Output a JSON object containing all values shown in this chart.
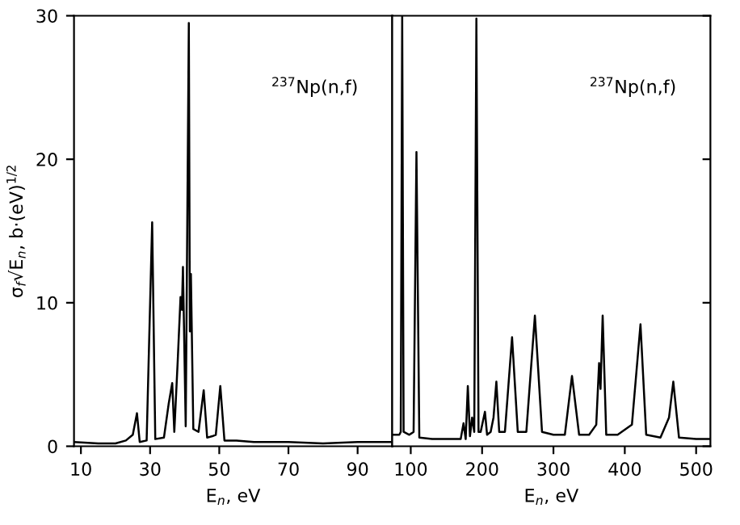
{
  "chart_data": [
    {
      "type": "line",
      "xlabel": "E$_{n}$, eV",
      "ylabel": "σ$_{f}$√E$_{n}$, b·(eV)$^{1/2}$",
      "annotations": [
        "$^{237}$Np(n,f)"
      ],
      "xlim": [
        8,
        100
      ],
      "ylim": [
        0,
        30
      ],
      "xticks": [
        10,
        30,
        50,
        70,
        90
      ],
      "yticks": [
        0,
        10,
        20,
        30
      ],
      "grid": false,
      "legend": false,
      "marker": "none",
      "line_style": "solid",
      "series": [
        {
          "color": "#000000",
          "x": [
            8,
            15,
            20,
            23,
            25,
            26.2,
            27,
            29,
            30.6,
            31.5,
            34,
            35.4,
            36.4,
            37,
            38,
            38.8,
            39.2,
            39.5,
            40.3,
            41.2,
            41.5,
            41.8,
            42.5,
            44,
            45.5,
            46.5,
            48,
            49,
            50.3,
            51.5,
            55,
            60,
            70,
            80,
            90,
            100
          ],
          "values": [
            0.3,
            0.2,
            0.2,
            0.4,
            0.8,
            2.3,
            0.3,
            0.4,
            15.6,
            0.5,
            0.6,
            3,
            4.4,
            1,
            6,
            10.4,
            9.5,
            12.5,
            1.4,
            29.5,
            8,
            12,
            1.2,
            1,
            3.9,
            0.6,
            0.7,
            0.8,
            4.2,
            0.4,
            0.4,
            0.3,
            0.3,
            0.2,
            0.3,
            0.3
          ]
        }
      ]
    },
    {
      "type": "line",
      "xlabel": "E$_{n}$, eV",
      "annotations": [
        "$^{237}$Np(n,f)"
      ],
      "xlim": [
        74,
        520
      ],
      "ylim": [
        0,
        30
      ],
      "xticks": [
        100,
        200,
        300,
        400,
        500
      ],
      "yticks": [
        0,
        10,
        20,
        30
      ],
      "tick_labels": "x",
      "grid": false,
      "legend": false,
      "marker": "none",
      "line_style": "solid",
      "series": [
        {
          "color": "#000000",
          "x": [
            76,
            84,
            86,
            88,
            90,
            98,
            104,
            108,
            112,
            130,
            150,
            170,
            174,
            177,
            180,
            183,
            186,
            189,
            192,
            195,
            198,
            204,
            207,
            212,
            216,
            220,
            224,
            232,
            242,
            250,
            262,
            274,
            284,
            300,
            316,
            326,
            336,
            350,
            360,
            364,
            366,
            369,
            374,
            390,
            410,
            422,
            430,
            450,
            462,
            468,
            476,
            500,
            520
          ],
          "values": [
            0.8,
            0.8,
            1,
            30,
            1,
            0.8,
            1,
            20.5,
            0.6,
            0.5,
            0.5,
            0.5,
            1.6,
            0.5,
            4.2,
            0.7,
            2,
            1,
            29.8,
            1,
            1,
            2.4,
            0.8,
            1,
            2,
            4.5,
            1,
            1,
            7.6,
            1,
            1,
            9.1,
            1,
            0.8,
            0.8,
            4.9,
            0.8,
            0.8,
            1.5,
            5.8,
            4,
            9.1,
            0.8,
            0.8,
            1.5,
            8.5,
            0.8,
            0.6,
            2,
            4.5,
            0.6,
            0.5,
            0.5
          ]
        }
      ]
    }
  ]
}
